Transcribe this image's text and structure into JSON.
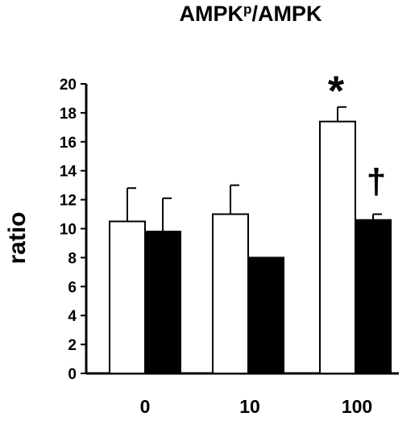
{
  "chart_data": {
    "type": "bar",
    "title": {
      "main": "AMPK",
      "sup": "p",
      "tail": "/AMPK"
    },
    "xlabel": "",
    "ylabel": "ratio",
    "ylim": [
      0,
      20
    ],
    "yticks": [
      0,
      2,
      4,
      6,
      8,
      10,
      12,
      14,
      16,
      18,
      20
    ],
    "categories": [
      "0",
      "10",
      "100"
    ],
    "grid": false,
    "series": [
      {
        "fill": "#ffffff",
        "values": [
          10.5,
          11.0,
          17.4
        ],
        "errors": [
          2.3,
          2.0,
          1.0
        ]
      },
      {
        "fill": "#000000",
        "values": [
          9.8,
          8.0,
          10.6
        ],
        "errors": [
          2.3,
          0.0,
          0.4
        ]
      }
    ],
    "annotations": [
      {
        "text": "*",
        "category": 2,
        "series": 0
      },
      {
        "text": "†",
        "category": 2,
        "series": 1
      }
    ]
  }
}
